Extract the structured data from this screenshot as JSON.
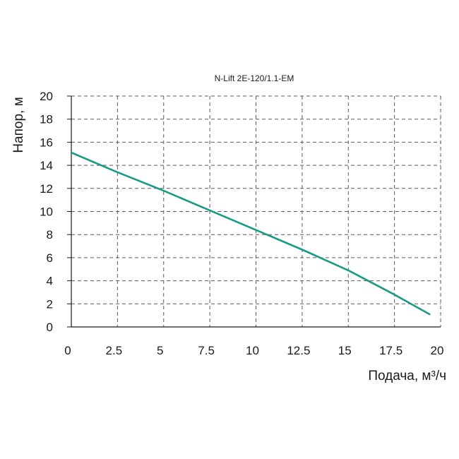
{
  "chart_data": {
    "type": "line",
    "title": "N-Lift 2E-120/1.1-EM",
    "xlabel": "Подача, м³/ч",
    "ylabel": "Напор, м",
    "xlim": [
      0,
      20
    ],
    "ylim": [
      0,
      20
    ],
    "xticks": [
      0,
      2.5,
      5,
      7.5,
      10,
      12.5,
      15,
      17.5,
      20
    ],
    "xtick_labels": [
      "0",
      "2.5",
      "5",
      "7.5",
      "10",
      "12.5",
      "15",
      "17.5",
      "20"
    ],
    "yticks": [
      0,
      2,
      4,
      6,
      8,
      10,
      12,
      14,
      16,
      18,
      20
    ],
    "ytick_labels": [
      "0",
      "2",
      "4",
      "6",
      "8",
      "10",
      "12",
      "14",
      "16",
      "18",
      "20"
    ],
    "grid": true,
    "series": [
      {
        "color": "#1a9a86",
        "x": [
          0,
          2.5,
          5,
          7.5,
          10,
          12.5,
          15,
          17.5,
          19.4
        ],
        "y": [
          15.1,
          13.4,
          11.8,
          10.1,
          8.4,
          6.7,
          4.9,
          2.8,
          1.1
        ]
      }
    ]
  }
}
